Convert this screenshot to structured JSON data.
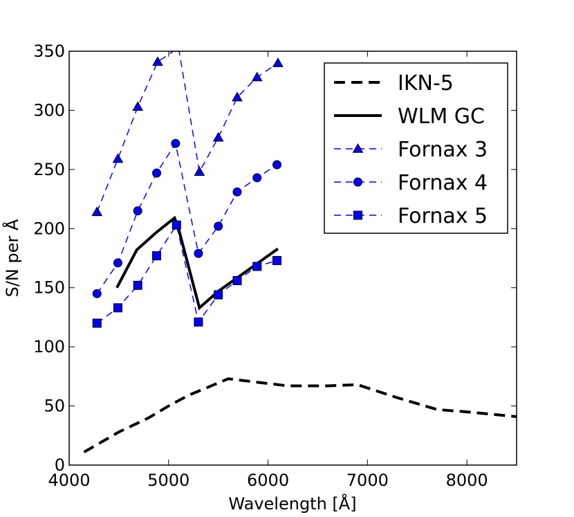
{
  "chart_data": {
    "type": "line",
    "title": "",
    "xlabel": "Wavelength [Å]",
    "ylabel": "S/N per Å",
    "xlim": [
      4000,
      8500
    ],
    "ylim": [
      0,
      350
    ],
    "xticks": [
      4000,
      5000,
      6000,
      7000,
      8000
    ],
    "yticks": [
      0,
      50,
      100,
      150,
      200,
      250,
      300,
      350
    ],
    "xtick_labels": [
      "4000",
      "5000",
      "6000",
      "7000",
      "8000"
    ],
    "ytick_labels": [
      "0",
      "50",
      "100",
      "150",
      "200",
      "250",
      "300",
      "350"
    ],
    "legend_position": "top-right",
    "series": [
      {
        "name": "IKN-5",
        "color": "#000000",
        "style": "dashed-thick",
        "marker": "none",
        "x": [
          4150,
          4500,
          4800,
          5000,
          5200,
          5600,
          5800,
          6200,
          6600,
          6900,
          7300,
          7700,
          8000,
          8500
        ],
        "y": [
          11,
          28,
          40,
          50,
          59,
          73,
          71,
          67,
          67,
          68,
          57,
          47,
          45,
          41
        ]
      },
      {
        "name": "WLM GC",
        "color": "#000000",
        "style": "solid-thick",
        "marker": "none",
        "x": [
          4480,
          4680,
          4880,
          5060,
          5100,
          5310,
          5500,
          5700,
          5900,
          6100
        ],
        "y": [
          150,
          182,
          197,
          209,
          200,
          133,
          147,
          159,
          171,
          183
        ]
      },
      {
        "name": "Fornax 3",
        "color": "#0000ff",
        "style": "dashed",
        "marker": "triangle",
        "x": [
          4280,
          4490,
          4690,
          4890,
          5100,
          5310,
          5500,
          5690,
          5890,
          6100
        ],
        "y": [
          214,
          259,
          303,
          341,
          353,
          248,
          277,
          311,
          328,
          340
        ]
      },
      {
        "name": "Fornax 4",
        "color": "#0000ff",
        "style": "dashed",
        "marker": "circle",
        "x": [
          4280,
          4490,
          4690,
          4880,
          5070,
          5300,
          5500,
          5690,
          5890,
          6090
        ],
        "y": [
          145,
          171,
          215,
          247,
          272,
          179,
          202,
          231,
          243,
          254
        ]
      },
      {
        "name": "Fornax 5",
        "color": "#0000ff",
        "style": "dashed",
        "marker": "square",
        "x": [
          4280,
          4490,
          4690,
          4880,
          5080,
          5300,
          5500,
          5690,
          5890,
          6090
        ],
        "y": [
          120,
          133,
          152,
          177,
          203,
          121,
          144,
          156,
          168,
          173
        ]
      }
    ]
  }
}
